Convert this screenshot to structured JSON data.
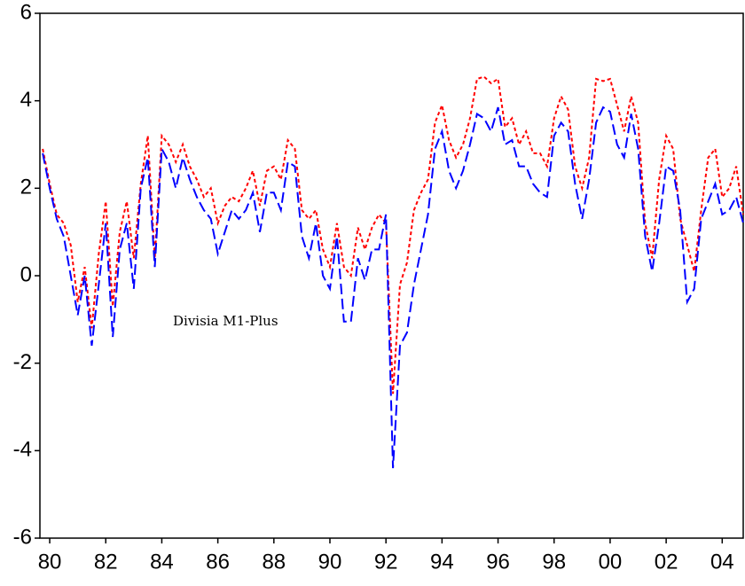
{
  "chart_data": {
    "type": "line",
    "x": [
      1979.75,
      1980,
      1980.25,
      1980.5,
      1980.75,
      1981,
      1981.25,
      1981.5,
      1981.75,
      1982,
      1982.25,
      1982.5,
      1982.75,
      1983,
      1983.25,
      1983.5,
      1983.75,
      1984,
      1984.25,
      1984.5,
      1984.75,
      1985,
      1985.25,
      1985.5,
      1985.75,
      1986,
      1986.25,
      1986.5,
      1986.75,
      1987,
      1987.25,
      1987.5,
      1987.75,
      1988,
      1988.25,
      1988.5,
      1988.75,
      1989,
      1989.25,
      1989.5,
      1989.75,
      1990,
      1990.25,
      1990.5,
      1990.75,
      1991,
      1991.25,
      1991.5,
      1991.75,
      1992,
      1992.25,
      1992.5,
      1992.75,
      1993,
      1993.25,
      1993.5,
      1993.75,
      1994,
      1994.25,
      1994.5,
      1994.75,
      1995,
      1995.25,
      1995.5,
      1995.75,
      1996,
      1996.25,
      1996.5,
      1996.75,
      1997,
      1997.25,
      1997.5,
      1997.75,
      1998,
      1998.25,
      1998.5,
      1998.75,
      1999,
      1999.25,
      1999.5,
      1999.75,
      2000,
      2000.25,
      2000.5,
      2000.75,
      2001,
      2001.25,
      2001.5,
      2001.75,
      2002,
      2002.25,
      2002.5,
      2002.75,
      2003,
      2003.25,
      2003.5,
      2003.75,
      2004,
      2004.25,
      2004.5,
      2004.75
    ],
    "series": [
      {
        "color": "#ff0000",
        "dash": "4,3",
        "values": [
          2.9,
          2.1,
          1.4,
          1.2,
          0.7,
          -0.6,
          0.2,
          -1.2,
          0.5,
          1.7,
          -0.7,
          1.0,
          1.7,
          0.4,
          2.1,
          3.2,
          0.4,
          3.2,
          3.0,
          2.6,
          3.0,
          2.5,
          2.2,
          1.8,
          2.0,
          1.2,
          1.6,
          1.8,
          1.7,
          2.0,
          2.4,
          1.6,
          2.4,
          2.5,
          2.2,
          3.1,
          2.9,
          1.5,
          1.3,
          1.5,
          0.6,
          0.2,
          1.2,
          0.2,
          0.0,
          1.1,
          0.6,
          1.1,
          1.4,
          1.2,
          -2.7,
          -0.2,
          0.3,
          1.5,
          1.9,
          2.2,
          3.5,
          3.9,
          3.1,
          2.7,
          3.0,
          3.6,
          4.5,
          4.55,
          4.4,
          4.5,
          3.4,
          3.6,
          3.0,
          3.3,
          2.8,
          2.8,
          2.5,
          3.6,
          4.1,
          3.8,
          2.5,
          2.0,
          2.7,
          4.5,
          4.45,
          4.5,
          3.9,
          3.3,
          4.1,
          3.5,
          1.2,
          0.4,
          2.2,
          3.2,
          2.9,
          1.3,
          0.7,
          0.1,
          1.5,
          2.7,
          2.9,
          1.8,
          2.0,
          2.5,
          1.4
        ]
      },
      {
        "name": "Divisia M1-Plus",
        "color": "#0000ff",
        "dash": "12,5",
        "values": [
          2.8,
          2.0,
          1.3,
          0.9,
          0.0,
          -0.9,
          0.0,
          -1.6,
          -0.2,
          1.2,
          -1.4,
          0.6,
          1.2,
          -0.3,
          2.0,
          2.7,
          0.2,
          2.9,
          2.6,
          2.0,
          2.7,
          2.2,
          1.8,
          1.5,
          1.3,
          0.5,
          1.0,
          1.5,
          1.3,
          1.5,
          1.9,
          1.0,
          1.9,
          1.9,
          1.5,
          2.6,
          2.5,
          0.9,
          0.4,
          1.2,
          0.0,
          -0.3,
          0.9,
          -1.05,
          -1.05,
          0.4,
          -0.1,
          0.6,
          0.6,
          1.4,
          -4.4,
          -1.6,
          -1.3,
          -0.2,
          0.6,
          1.4,
          2.9,
          3.3,
          2.4,
          2.0,
          2.4,
          3.0,
          3.7,
          3.6,
          3.3,
          3.85,
          3.0,
          3.1,
          2.5,
          2.5,
          2.1,
          1.9,
          1.8,
          3.2,
          3.5,
          3.3,
          2.1,
          1.3,
          2.2,
          3.5,
          3.85,
          3.75,
          3.0,
          2.7,
          3.7,
          2.9,
          0.9,
          0.1,
          1.2,
          2.5,
          2.4,
          1.5,
          -0.6,
          -0.3,
          1.3,
          1.7,
          2.1,
          1.4,
          1.5,
          1.8,
          1.2
        ]
      }
    ],
    "xlim": [
      1979.65,
      2004.75
    ],
    "xticks": [
      {
        "value": 1980,
        "label": "80"
      },
      {
        "value": 1982,
        "label": "82"
      },
      {
        "value": 1984,
        "label": "84"
      },
      {
        "value": 1986,
        "label": "86"
      },
      {
        "value": 1988,
        "label": "88"
      },
      {
        "value": 1990,
        "label": "90"
      },
      {
        "value": 1992,
        "label": "92"
      },
      {
        "value": 1994,
        "label": "94"
      },
      {
        "value": 1996,
        "label": "96"
      },
      {
        "value": 1998,
        "label": "98"
      },
      {
        "value": 2000,
        "label": "00"
      },
      {
        "value": 2002,
        "label": "02"
      },
      {
        "value": 2004,
        "label": "04"
      }
    ],
    "ylim": [
      -6,
      6
    ],
    "yticks": [
      -6,
      -4,
      -2,
      0,
      2,
      4,
      6
    ],
    "grid": false
  }
}
